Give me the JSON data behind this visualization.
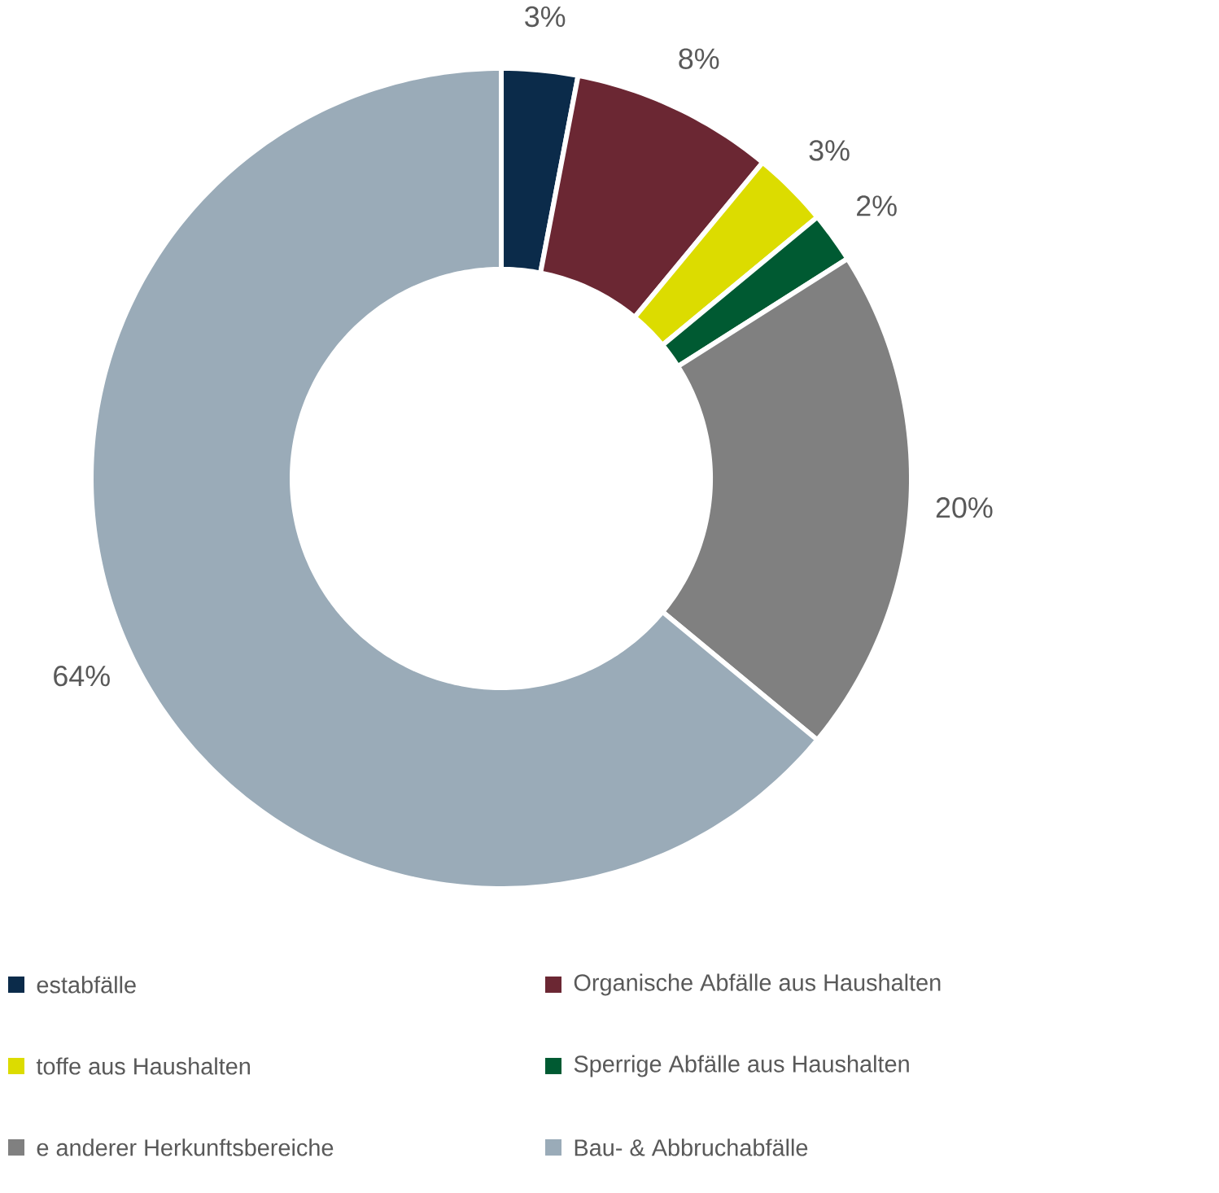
{
  "chart_data": {
    "type": "donut",
    "categories": [
      "estabfälle",
      "Organische Abfälle aus Haushalten",
      "toffe aus Haushalten",
      "Sperrige Abfälle aus Haushalten",
      "e anderer Herkunftsbereiche",
      "Bau- & Abbruchabfälle"
    ],
    "values": [
      3,
      8,
      3,
      2,
      20,
      64
    ],
    "value_labels": [
      "3%",
      "8%",
      "3%",
      "2%",
      "20%",
      "64%"
    ],
    "colors": [
      "#0b2b4a",
      "#6b2733",
      "#dcdc00",
      "#005a32",
      "#808080",
      "#9aabb8"
    ],
    "legend": "bottom"
  }
}
